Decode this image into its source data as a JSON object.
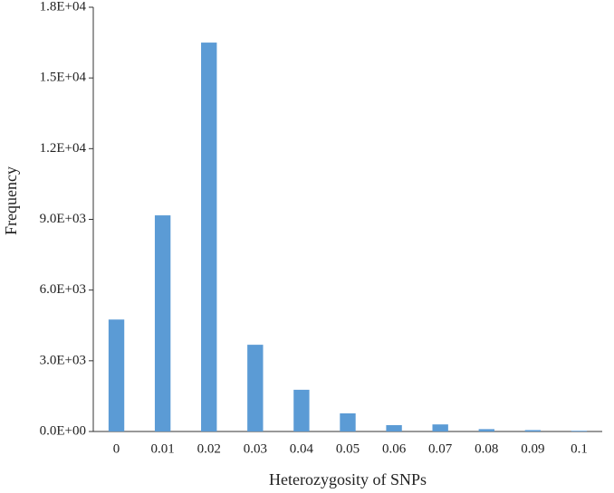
{
  "chart_data": {
    "type": "bar",
    "x_label": "Heterozygosity of SNPs",
    "y_label": "Frequency",
    "categories": [
      "0",
      "0.01",
      "0.02",
      "0.03",
      "0.04",
      "0.05",
      "0.06",
      "0.07",
      "0.08",
      "0.09",
      "0.1"
    ],
    "values": [
      4750,
      9170,
      16500,
      3680,
      1770,
      770,
      270,
      300,
      100,
      60,
      30
    ],
    "color": "#5b9bd5",
    "ylim": [
      0,
      18000
    ],
    "yticks": [
      {
        "value": 0,
        "label": "0.0E+00"
      },
      {
        "value": 3000,
        "label": "3.0E+03"
      },
      {
        "value": 6000,
        "label": "6.0E+03"
      },
      {
        "value": 9000,
        "label": "9.0E+03"
      },
      {
        "value": 12000,
        "label": "1.2E+04"
      },
      {
        "value": 15000,
        "label": "1.5E+04"
      },
      {
        "value": 18000,
        "label": "1.8E+04"
      }
    ],
    "grid": false
  }
}
